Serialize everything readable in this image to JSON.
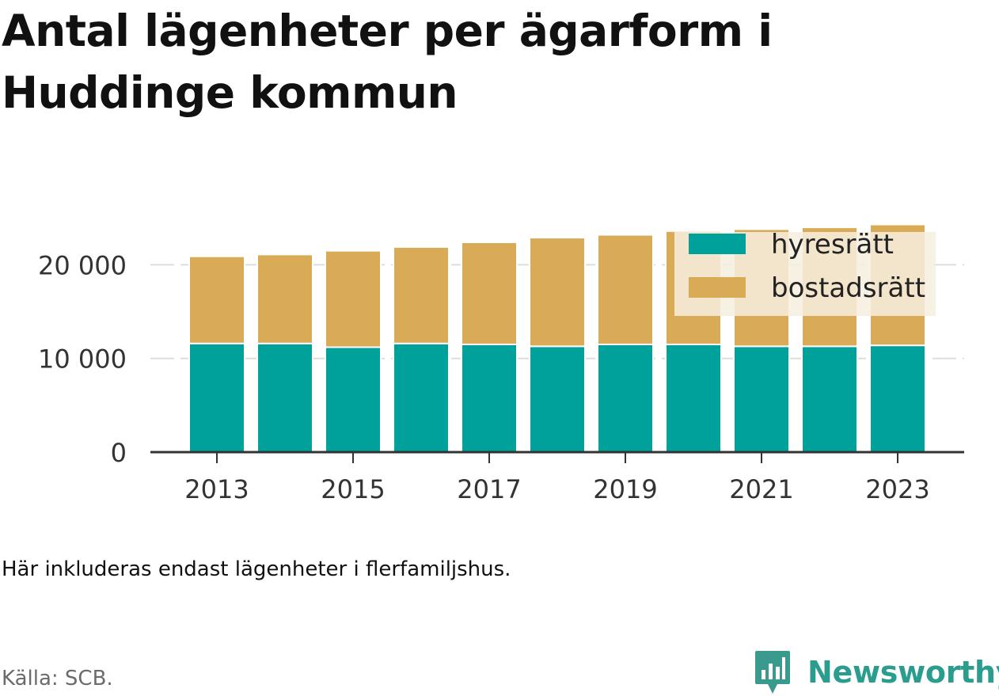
{
  "title": "Antal lägenheter per ägarform i Huddinge kommun",
  "note": "Här inkluderas endast lägenheter i flerfamiljshus.",
  "source": "Källa: SCB.",
  "brand": {
    "name": "Newsworthy",
    "icon": "newsworthy-logo-icon",
    "color": "#2a9d8f"
  },
  "colors": {
    "hyresratt": "#00a19a",
    "bostadsratt": "#d9ab57",
    "legend_bg": "#f6eedf",
    "grid": "#dddddd",
    "axis": "#333333"
  },
  "chart_data": {
    "type": "bar",
    "stacked": true,
    "categories": [
      "2013",
      "2014",
      "2015",
      "2016",
      "2017",
      "2018",
      "2019",
      "2020",
      "2021",
      "2022",
      "2023"
    ],
    "x_tick_labels": [
      "2013",
      "2015",
      "2017",
      "2019",
      "2021",
      "2023"
    ],
    "y_ticks": [
      0,
      10000,
      20000
    ],
    "y_tick_labels": [
      "0",
      "10 000",
      "20 000"
    ],
    "ylim": [
      0,
      23500
    ],
    "grid": true,
    "legend_position": "top-right",
    "series": [
      {
        "name": "hyresrätt",
        "values": [
          11600,
          11600,
          11200,
          11600,
          11500,
          11300,
          11500,
          11500,
          11300,
          11300,
          11400
        ]
      },
      {
        "name": "bostadsrätt",
        "values": [
          9300,
          9500,
          10300,
          10300,
          10900,
          11600,
          11700,
          12100,
          12500,
          12700,
          12900
        ]
      }
    ]
  }
}
